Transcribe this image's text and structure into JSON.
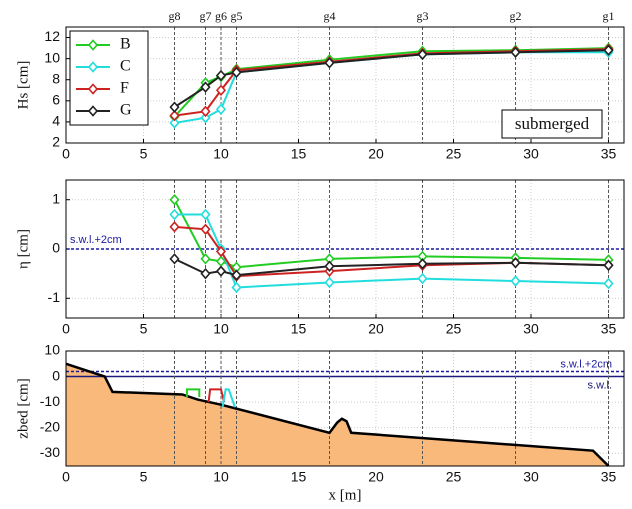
{
  "chart_data": [
    {
      "type": "line",
      "ylabel": "Hs [cm]",
      "gauges": {
        "labels": [
          "g8",
          "g7",
          "g6",
          "g5",
          "g4",
          "g3",
          "g2",
          "g1"
        ],
        "x": [
          7,
          9,
          10,
          11,
          17,
          23,
          29,
          35
        ]
      },
      "x": [
        7,
        9,
        10,
        11,
        17,
        23,
        29,
        35
      ],
      "xlim": [
        0,
        36
      ],
      "xticks": [
        0,
        5,
        10,
        15,
        20,
        25,
        30,
        35
      ],
      "ylim": [
        2,
        13
      ],
      "yticks": [
        2,
        4,
        6,
        8,
        10,
        12
      ],
      "grid": true,
      "legend": "upper left",
      "annotation": "submerged",
      "series": [
        {
          "name": "B",
          "color": "#22cc22",
          "values": [
            4.5,
            7.7,
            8.3,
            9.0,
            9.9,
            10.7,
            10.8,
            11.0
          ]
        },
        {
          "name": "C",
          "color": "#22dddd",
          "values": [
            3.9,
            4.4,
            5.2,
            8.7,
            9.6,
            10.4,
            10.6,
            10.6
          ]
        },
        {
          "name": "F",
          "color": "#cc2222",
          "values": [
            4.6,
            5.0,
            7.0,
            8.9,
            9.7,
            10.5,
            10.7,
            10.9
          ]
        },
        {
          "name": "G",
          "color": "#222222",
          "values": [
            5.4,
            7.3,
            8.4,
            8.7,
            9.6,
            10.4,
            10.6,
            10.8
          ]
        }
      ]
    },
    {
      "type": "line",
      "ylabel": "η [cm]",
      "x": [
        7,
        9,
        10,
        11,
        17,
        23,
        29,
        35
      ],
      "xlim": [
        0,
        36
      ],
      "xticks": [
        0,
        5,
        10,
        15,
        20,
        25,
        30,
        35
      ],
      "ylim": [
        -1.4,
        1.4
      ],
      "yticks": [
        -1,
        0,
        1
      ],
      "grid": true,
      "hlines": [
        {
          "value": 0,
          "label": "s.w.l.+2cm",
          "color": "#1a1aa0",
          "dash": true
        }
      ],
      "series": [
        {
          "color": "#22cc22",
          "values": [
            1.0,
            -0.2,
            -0.25,
            -0.37,
            -0.2,
            -0.15,
            -0.18,
            -0.22
          ]
        },
        {
          "color": "#22dddd",
          "values": [
            0.7,
            0.7,
            0.0,
            -0.78,
            -0.68,
            -0.6,
            -0.65,
            -0.7
          ]
        },
        {
          "color": "#cc2222",
          "values": [
            0.45,
            0.4,
            -0.05,
            -0.55,
            -0.45,
            -0.33,
            -0.28,
            -0.33
          ]
        },
        {
          "color": "#222222",
          "values": [
            -0.2,
            -0.5,
            -0.45,
            -0.53,
            -0.35,
            -0.3,
            -0.28,
            -0.33
          ]
        }
      ]
    },
    {
      "type": "line",
      "ylabel": "zbed [cm]",
      "xlabel": "x [m]",
      "xlim": [
        0,
        36
      ],
      "xticks": [
        0,
        5,
        10,
        15,
        20,
        25,
        30,
        35
      ],
      "ylim": [
        -35,
        10
      ],
      "yticks": [
        -30,
        -20,
        -10,
        0,
        10
      ],
      "grid": true,
      "hlines": [
        {
          "value": 2,
          "label": "s.w.l.+2cm",
          "color": "#1a1aa0",
          "dash": true
        },
        {
          "value": 0,
          "label": "s.w.l.",
          "color": "#1a1a80",
          "dash": false
        }
      ],
      "series": [
        {
          "color": "#000000",
          "fill": "#f9b97a",
          "x": [
            0,
            2.5,
            3,
            7.5,
            8.5,
            10,
            17,
            17.5,
            17.8,
            18.1,
            18.4,
            34,
            35
          ],
          "values": [
            5,
            0,
            -6,
            -7,
            -9,
            -11,
            -22,
            -18,
            -16.5,
            -17.5,
            -22,
            -29,
            -35
          ]
        },
        {
          "color": "#22cc22",
          "x": [
            7.8,
            7.8,
            8.6,
            8.6
          ],
          "values": [
            -8,
            -5,
            -5,
            -8
          ]
        },
        {
          "color": "#cc2222",
          "x": [
            9.2,
            9.3,
            10,
            10.2
          ],
          "values": [
            -10,
            -5,
            -5,
            -10
          ]
        },
        {
          "color": "#22dddd",
          "x": [
            10.1,
            10.3,
            10.5,
            10.9
          ],
          "values": [
            -12,
            -5,
            -5,
            -12
          ]
        }
      ]
    }
  ]
}
